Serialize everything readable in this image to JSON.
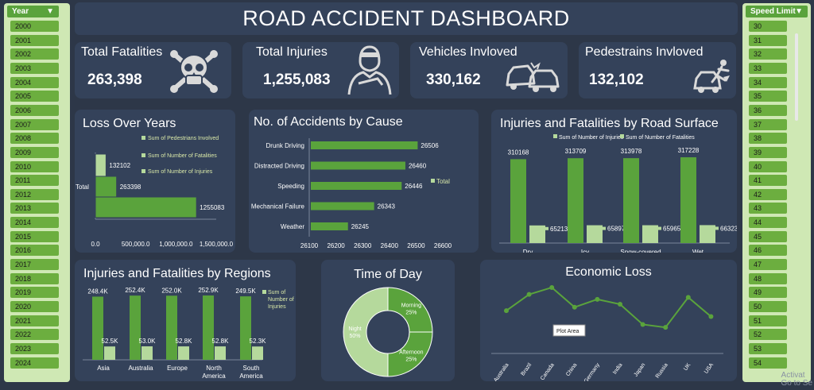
{
  "dashboard_title": "ROAD ACCIDENT DASHBOARD",
  "colors": {
    "background": "#2d3748",
    "panel": "#34425a",
    "bar_dark": "#5aa33c",
    "bar_light": "#b5d99c",
    "slicer_bg": "#cfe8b4"
  },
  "year_slicer": {
    "label": "Year",
    "items": [
      "2000",
      "2001",
      "2002",
      "2003",
      "2004",
      "2005",
      "2006",
      "2007",
      "2008",
      "2009",
      "2010",
      "2011",
      "2012",
      "2013",
      "2014",
      "2015",
      "2016",
      "2017",
      "2018",
      "2019",
      "2020",
      "2021",
      "2022",
      "2023",
      "2024"
    ]
  },
  "speed_slicer": {
    "label": "Speed Limit",
    "items": [
      "30",
      "31",
      "32",
      "33",
      "34",
      "35",
      "36",
      "37",
      "38",
      "39",
      "40",
      "41",
      "42",
      "43",
      "44",
      "45",
      "46",
      "47",
      "48",
      "49",
      "50",
      "51",
      "52",
      "53",
      "54"
    ]
  },
  "kpis": {
    "fatalities": {
      "label": "Total Fatalities",
      "value": "263,398",
      "icon": "skull-crossbones-icon"
    },
    "injuries": {
      "label": "Total Injuries",
      "value": "1,255,083",
      "icon": "injured-person-icon"
    },
    "vehicles": {
      "label": "Vehicles Invloved",
      "value": "330,162",
      "icon": "car-crash-icon"
    },
    "pedestrians": {
      "label": "Pedestrains Invloved",
      "value": "132,102",
      "icon": "pedestrian-hit-icon"
    }
  },
  "chart_data": [
    {
      "id": "loss",
      "type": "bar",
      "orientation": "horizontal",
      "title": "Loss Over Years",
      "categories": [
        "Total"
      ],
      "series": [
        {
          "name": "Sum of Pedestrians Involved",
          "values": [
            132102
          ],
          "data_labels": [
            "132102"
          ]
        },
        {
          "name": "Sum of Number of Fatalities",
          "values": [
            263398
          ],
          "data_labels": [
            "263398"
          ]
        },
        {
          "name": "Sum of Number of Injuries",
          "values": [
            1255083
          ],
          "data_labels": [
            "1255083"
          ]
        }
      ],
      "xlim": [
        0,
        1500000
      ],
      "xticks": [
        0,
        500000,
        1000000,
        1500000
      ],
      "xtick_labels": [
        "0.0",
        "500,000.0",
        "1,000,000.0",
        "1,500,000.0"
      ],
      "legend_position": "right"
    },
    {
      "id": "cause",
      "type": "bar",
      "orientation": "horizontal",
      "title": "No. of Accidents by Cause",
      "categories": [
        "Drunk Driving",
        "Distracted Driving",
        "Speeding",
        "Mechanical Failure",
        "Weather"
      ],
      "series": [
        {
          "name": "Total",
          "values": [
            26506,
            26460,
            26446,
            26343,
            26245
          ]
        }
      ],
      "xlim": [
        26100,
        26600
      ],
      "xticks": [
        26100,
        26200,
        26300,
        26400,
        26500,
        26600
      ],
      "xtick_labels": [
        "26100",
        "26200",
        "26300",
        "26400",
        "26500",
        "26600"
      ],
      "legend_position": "right"
    },
    {
      "id": "surface",
      "type": "bar",
      "title": "Injuries and Fatalities by Road Surface",
      "categories": [
        "Dry",
        "Icy",
        "Snow-covered",
        "Wet"
      ],
      "series": [
        {
          "name": "Sum of Number of Injuries",
          "values": [
            310168,
            313709,
            313978,
            317228
          ]
        },
        {
          "name": "Sum of Number of Fatalities",
          "values": [
            65213,
            65897,
            65965,
            66323
          ]
        }
      ],
      "legend_position": "top"
    },
    {
      "id": "regions",
      "type": "bar",
      "title": "Injuries and Fatalities by Regions",
      "categories": [
        "Asia",
        "Australia",
        "Europe",
        "North\nAmerica",
        "South\nAmerica"
      ],
      "series": [
        {
          "name": "Sum of Number of Injuries",
          "values": [
            248400,
            252400,
            252000,
            252900,
            249500
          ],
          "data_labels": [
            "248.4K",
            "252.4K",
            "252.0K",
            "252.9K",
            "249.5K"
          ]
        },
        {
          "name": "",
          "values": [
            52500,
            53000,
            52800,
            52800,
            52300
          ],
          "data_labels": [
            "52.5K",
            "53.0K",
            "52.8K",
            "52.8K",
            "52.3K"
          ]
        }
      ],
      "legend_position": "right"
    },
    {
      "id": "time",
      "type": "pie",
      "title": "Time of Day",
      "labels": [
        "Morning",
        "Afternoon",
        "Night"
      ],
      "values": [
        25,
        25,
        50
      ],
      "value_labels": [
        "25%",
        "25%",
        "50%"
      ]
    },
    {
      "id": "economic",
      "type": "line",
      "title": "Economic Loss",
      "x": [
        "Australia",
        "Brazil",
        "Canada",
        "China",
        "Germany",
        "India",
        "Japan",
        "Russia",
        "UK",
        "USA"
      ],
      "y": [
        0.45,
        0.78,
        0.92,
        0.52,
        0.68,
        0.58,
        0.17,
        0.11,
        0.72,
        0.33
      ],
      "y_relative": true,
      "tooltip": "Plot Area"
    }
  ],
  "watermark": {
    "line1": "Activat",
    "line2": "Go to Se"
  }
}
